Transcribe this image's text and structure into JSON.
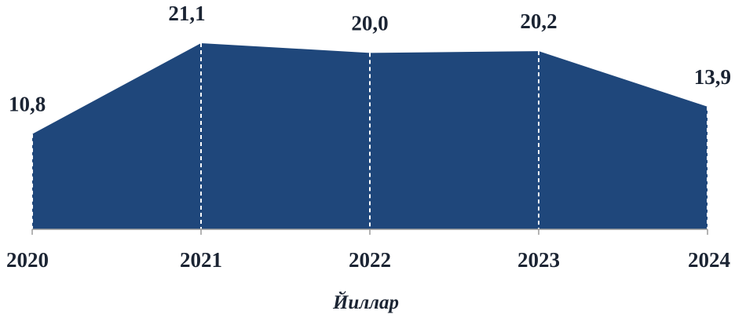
{
  "chart_data": {
    "type": "area",
    "categories": [
      "2020",
      "2021",
      "2022",
      "2023",
      "2024"
    ],
    "values": [
      10.8,
      21.1,
      20.0,
      20.2,
      13.9
    ],
    "value_labels": [
      "10,8",
      "21,1",
      "20,0",
      "20,2",
      "13,9"
    ],
    "xlabel": "Йиллар",
    "ylabel": "",
    "ylim": [
      0,
      21.1
    ],
    "grid": false,
    "legend": "none",
    "colors": {
      "fill": "#1f477b",
      "dividers": "#ffffff",
      "axis": "#9a9a9a",
      "text": "#1b2433"
    }
  }
}
